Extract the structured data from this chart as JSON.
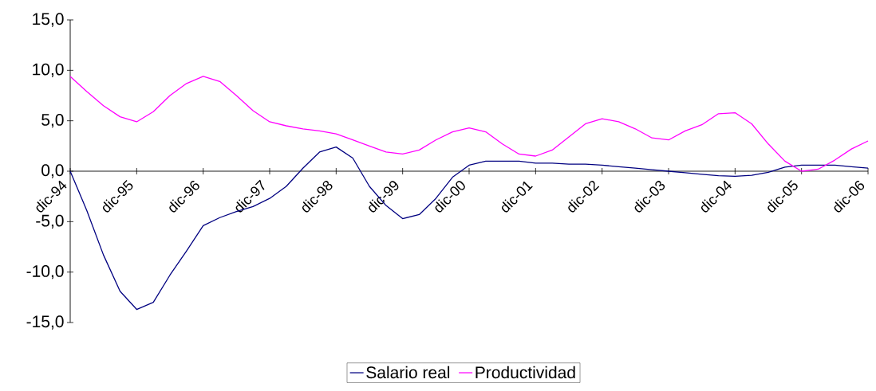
{
  "chart_data": {
    "type": "line",
    "x": [
      "1994-12",
      "1995-03",
      "1995-06",
      "1995-09",
      "1995-12",
      "1996-03",
      "1996-06",
      "1996-09",
      "1996-12",
      "1997-03",
      "1997-06",
      "1997-09",
      "1997-12",
      "1998-03",
      "1998-06",
      "1998-09",
      "1998-12",
      "1999-03",
      "1999-06",
      "1999-09",
      "1999-12",
      "2000-03",
      "2000-06",
      "2000-09",
      "2000-12",
      "2001-03",
      "2001-06",
      "2001-09",
      "2001-12",
      "2002-03",
      "2002-06",
      "2002-09",
      "2002-12",
      "2003-03",
      "2003-06",
      "2003-09",
      "2003-12",
      "2004-03",
      "2004-06",
      "2004-09",
      "2004-12",
      "2005-03",
      "2005-06",
      "2005-09",
      "2005-12",
      "2006-03",
      "2006-06",
      "2006-09",
      "2006-12"
    ],
    "series": [
      {
        "name": "Salario real",
        "color": "#000080",
        "values": [
          0,
          -3.9,
          -8.3,
          -11.9,
          -13.7,
          -13.0,
          -10.3,
          -7.9,
          -5.4,
          -4.6,
          -4.0,
          -3.5,
          -2.7,
          -1.5,
          0.3,
          1.9,
          2.4,
          1.3,
          -1.5,
          -3.4,
          -4.7,
          -4.3,
          -2.7,
          -0.6,
          0.6,
          1.0,
          1.0,
          1.0,
          0.8,
          0.8,
          0.7,
          0.7,
          0.6,
          0.45,
          0.3,
          0.15,
          0.0,
          -0.15,
          -0.3,
          -0.45,
          -0.5,
          -0.4,
          -0.1,
          0.4,
          0.6,
          0.6,
          0.6,
          0.45,
          0.3
        ]
      },
      {
        "name": "Productividad",
        "color": "#ff00ff",
        "values": [
          9.4,
          7.9,
          6.5,
          5.4,
          4.9,
          5.9,
          7.5,
          8.7,
          9.4,
          8.9,
          7.5,
          6.0,
          4.9,
          4.5,
          4.2,
          4.0,
          3.7,
          3.1,
          2.5,
          1.9,
          1.7,
          2.1,
          3.1,
          3.9,
          4.3,
          3.9,
          2.7,
          1.7,
          1.5,
          2.1,
          3.4,
          4.7,
          5.2,
          4.9,
          4.2,
          3.3,
          3.1,
          4.0,
          4.6,
          5.7,
          5.8,
          4.7,
          2.7,
          1.0,
          0.0,
          0.2,
          1.1,
          2.2,
          3.0
        ]
      }
    ],
    "xlim": [
      "1994-12",
      "2006-12"
    ],
    "xticks": [
      {
        "value": "1994-12",
        "label": "dic-94"
      },
      {
        "value": "1995-12",
        "label": "dic-95"
      },
      {
        "value": "1996-12",
        "label": "dic-96"
      },
      {
        "value": "1997-12",
        "label": "dic-97"
      },
      {
        "value": "1998-12",
        "label": "dic-98"
      },
      {
        "value": "1999-12",
        "label": "dic-99"
      },
      {
        "value": "2000-12",
        "label": "dic-00"
      },
      {
        "value": "2001-12",
        "label": "dic-01"
      },
      {
        "value": "2002-12",
        "label": "dic-02"
      },
      {
        "value": "2003-12",
        "label": "dic-03"
      },
      {
        "value": "2004-12",
        "label": "dic-04"
      },
      {
        "value": "2005-12",
        "label": "dic-05"
      },
      {
        "value": "2006-12",
        "label": "dic-06"
      }
    ],
    "ylim": [
      -15,
      15
    ],
    "yticks": [
      {
        "value": -15,
        "label": "-15,0"
      },
      {
        "value": -10,
        "label": "-10,0"
      },
      {
        "value": -5,
        "label": "-5,0"
      },
      {
        "value": 0,
        "label": "0,0"
      },
      {
        "value": 5,
        "label": "5,0"
      },
      {
        "value": 10,
        "label": "10,0"
      },
      {
        "value": 15,
        "label": "15,0"
      }
    ],
    "legend": "bottom",
    "marker": "none",
    "line_style": "solid",
    "grid": false
  }
}
